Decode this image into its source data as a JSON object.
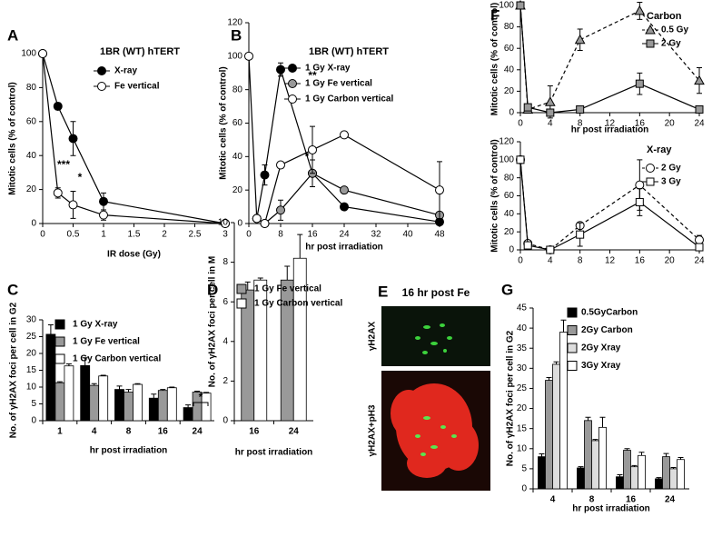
{
  "chart_data": [
    {
      "type": "line",
      "label": "A",
      "legend_title": "1BR (WT) hTERT",
      "ylabel": "Mitotic cells (% of control)",
      "xlabel": "IR dose (Gy)",
      "x": [
        0,
        0.25,
        0.5,
        1,
        3
      ],
      "xlim": [
        0,
        3
      ],
      "xticks": [
        0,
        0.5,
        1,
        1.5,
        2,
        2.5,
        3
      ],
      "ylim": [
        0,
        100
      ],
      "yticks": [
        0,
        20,
        40,
        60,
        80,
        100
      ],
      "series": [
        {
          "name": "X-ray",
          "color": "#000000",
          "marker": "circle",
          "values": [
            100,
            69,
            50,
            13,
            0
          ],
          "errors": [
            0,
            2,
            10,
            5,
            0
          ]
        },
        {
          "name": "Fe vertical",
          "color": "#ffffff",
          "marker": "circle",
          "values": [
            100,
            18,
            11,
            5,
            0
          ],
          "errors": [
            0,
            3,
            8,
            3,
            0
          ]
        }
      ],
      "annotations": [
        "***",
        "*"
      ]
    },
    {
      "type": "line",
      "label": "B",
      "legend_title": "1BR (WT) hTERT",
      "ylabel": "Mitotic cells (% of control)",
      "xlabel": "hr post irradiation",
      "x": [
        0,
        2,
        4,
        8,
        16,
        24,
        48
      ],
      "xlim": [
        0,
        48
      ],
      "xticks": [
        0,
        8,
        16,
        24,
        32,
        40,
        48
      ],
      "ylim": [
        0,
        120
      ],
      "yticks": [
        0,
        20,
        40,
        60,
        80,
        100,
        120
      ],
      "series": [
        {
          "name": "1 Gy X-ray",
          "color": "#000000",
          "marker": "circle",
          "values": [
            null,
            3,
            29,
            92,
            30,
            10,
            1
          ],
          "errors": [
            0,
            0,
            6,
            4,
            0,
            0,
            0
          ]
        },
        {
          "name": "1 Gy Fe vertical",
          "color": "#999999",
          "marker": "circle",
          "values": [
            null,
            3,
            0,
            8,
            30,
            20,
            5
          ],
          "errors": [
            0,
            0,
            0,
            6,
            8,
            0,
            0
          ]
        },
        {
          "name": "1 Gy Carbon vertical",
          "color": "#ffffff",
          "marker": "circle",
          "values": [
            100,
            3,
            0,
            35,
            44,
            53,
            20
          ],
          "errors": [
            0,
            0,
            0,
            0,
            14,
            0,
            17
          ]
        }
      ],
      "annotations": [
        "**",
        "*"
      ]
    },
    {
      "type": "line",
      "label": "F",
      "legend_title": "Carbon",
      "ylabel": "Mitotic cells (% of control)",
      "xlabel": "hr post irradiation",
      "x": [
        0,
        1,
        4,
        8,
        16,
        24
      ],
      "xlim": [
        0,
        24
      ],
      "xticks": [
        0,
        4,
        8,
        12,
        16,
        20,
        24
      ],
      "ylim": [
        0,
        100
      ],
      "yticks": [
        0,
        20,
        40,
        60,
        80,
        100
      ],
      "series": [
        {
          "name": "0.5 Gy",
          "color": "#999999",
          "marker": "triangle",
          "dashed": true,
          "values": [
            100,
            3,
            10,
            68,
            95,
            30
          ],
          "errors": [
            0,
            0,
            15,
            10,
            8,
            12
          ]
        },
        {
          "name": "2 Gy",
          "color": "#999999",
          "marker": "square",
          "values": [
            100,
            5,
            0,
            3,
            27,
            3
          ],
          "errors": [
            0,
            0,
            0,
            0,
            10,
            0
          ]
        }
      ]
    },
    {
      "type": "line",
      "legend_title": "X-ray",
      "ylabel": "Mitotic cells (% of control)",
      "x": [
        0,
        1,
        4,
        8,
        16,
        24
      ],
      "xlim": [
        0,
        24
      ],
      "xticks": [
        0,
        4,
        8,
        12,
        16,
        20,
        24
      ],
      "ylim": [
        0,
        120
      ],
      "yticks": [
        0,
        20,
        40,
        60,
        80,
        100,
        120
      ],
      "series": [
        {
          "name": "2 Gy",
          "color": "#ffffff",
          "marker": "circle",
          "dashed": true,
          "values": [
            100,
            7,
            0,
            27,
            72,
            11
          ],
          "errors": [
            0,
            0,
            0,
            3,
            28,
            5
          ]
        },
        {
          "name": "3 Gy",
          "color": "#ffffff",
          "marker": "square",
          "values": [
            100,
            5,
            0,
            17,
            53,
            3
          ],
          "errors": [
            0,
            0,
            0,
            13,
            15,
            3
          ]
        }
      ]
    },
    {
      "type": "bar",
      "label": "C",
      "ylabel": "No. of γH2AX foci per cell in G2",
      "xlabel": "hr post irradiation",
      "categories": [
        "1",
        "4",
        "8",
        "16",
        "24"
      ],
      "ylim": [
        0,
        30
      ],
      "yticks": [
        0,
        5,
        10,
        15,
        20,
        25,
        30
      ],
      "series": [
        {
          "name": "1 Gy X-ray",
          "color": "#000000",
          "values": [
            25.7,
            16.4,
            9.3,
            6.7,
            3.9
          ],
          "errors": [
            2.8,
            2.3,
            1,
            1.2,
            0.8
          ]
        },
        {
          "name": "1 Gy Fe vertical",
          "color": "#999999",
          "values": [
            11.3,
            10.5,
            8.5,
            9,
            8.5
          ],
          "errors": [
            0.3,
            0.5,
            0.8,
            0.3,
            0.3
          ]
        },
        {
          "name": "1 Gy Carbon vertical",
          "color": "#ffffff",
          "values": [
            16.3,
            13.3,
            10.8,
            9.8,
            8.2
          ],
          "errors": [
            0.6,
            0.2,
            0.2,
            0.2,
            0.2
          ]
        }
      ],
      "annotations": [
        "*"
      ]
    },
    {
      "type": "bar",
      "label": "D",
      "ylabel": "No. of γH2AX foci per cell in M",
      "xlabel": "hr post irradiation",
      "categories": [
        "16",
        "24"
      ],
      "ylim": [
        0,
        10
      ],
      "yticks": [
        0,
        2,
        4,
        6,
        8,
        10
      ],
      "series": [
        {
          "name": "1 Gy Fe vertical",
          "color": "#999999",
          "values": [
            6.6,
            7.1
          ],
          "errors": [
            0.4,
            0.7
          ]
        },
        {
          "name": "1 Gy Carbon vertical",
          "color": "#ffffff",
          "values": [
            7.1,
            8.2
          ],
          "errors": [
            0.1,
            1.2
          ]
        }
      ]
    },
    {
      "type": "bar",
      "label": "G",
      "ylabel": "No. of γH2AX foci per cell in G2",
      "xlabel": "hr post irradiation",
      "categories": [
        "4",
        "8",
        "16",
        "24"
      ],
      "ylim": [
        0,
        45
      ],
      "yticks": [
        0,
        5,
        10,
        15,
        20,
        25,
        30,
        35,
        40,
        45
      ],
      "series": [
        {
          "name": "0.5GyCarbon",
          "color": "#000000",
          "values": [
            8,
            5.2,
            3,
            2.5
          ],
          "errors": [
            0.7,
            0.3,
            0.5,
            0.3
          ]
        },
        {
          "name": "2Gy Carbon",
          "color": "#999999",
          "values": [
            27,
            17,
            9.6,
            8
          ],
          "errors": [
            0.7,
            0.8,
            0.4,
            0.8
          ]
        },
        {
          "name": "2Gy Xray",
          "color": "#dddddd",
          "values": [
            31,
            12,
            5.5,
            5
          ],
          "errors": [
            0.6,
            0.3,
            0.3,
            0.3
          ]
        },
        {
          "name": "3Gy Xray",
          "color": "#ffffff",
          "values": [
            39,
            15.3,
            8.3,
            7.3
          ],
          "errors": [
            3,
            2.5,
            0.8,
            0.5
          ]
        }
      ]
    }
  ],
  "image_panel": {
    "label": "E",
    "title": "16 hr post Fe",
    "channels": [
      "γH2AX",
      "γH2AX+pH3"
    ]
  }
}
